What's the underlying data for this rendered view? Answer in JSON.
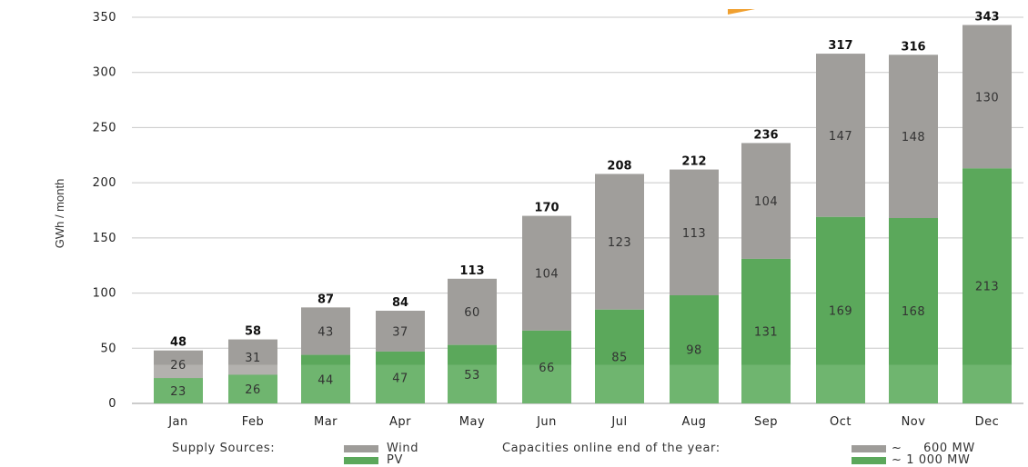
{
  "chart_data": {
    "type": "bar",
    "stacked": true,
    "ylabel": "GWh / month",
    "ylim": [
      0,
      350
    ],
    "yticks": [
      0,
      50,
      100,
      150,
      200,
      250,
      300,
      350
    ],
    "grid": true,
    "categories": [
      "Jan",
      "Feb",
      "Mar",
      "Apr",
      "May",
      "Jun",
      "Jul",
      "Aug",
      "Sep",
      "Oct",
      "Nov",
      "Dec"
    ],
    "series": [
      {
        "name": "PV",
        "color": "#5ba85b",
        "values": [
          23,
          26,
          44,
          47,
          53,
          66,
          85,
          98,
          131,
          169,
          168,
          213
        ]
      },
      {
        "name": "Wind",
        "color": "#a09e9b",
        "values": [
          26,
          31,
          43,
          37,
          60,
          104,
          123,
          113,
          104,
          147,
          148,
          130
        ]
      }
    ],
    "totals": [
      48,
      58,
      87,
      84,
      113,
      170,
      208,
      212,
      236,
      317,
      316,
      343
    ],
    "baseline_band": {
      "value": 35,
      "color_pv": "#6fb56f",
      "color_wind": "#b3b1ae"
    }
  },
  "legend": {
    "supply_title": "Supply Sources:",
    "wind_label": "Wind",
    "pv_label": "PV",
    "capacity_title": "Capacities online end of the year:",
    "wind_capacity": "~     600 MW",
    "pv_capacity": "~ 1 000 MW",
    "wind_color": "#9e9c99",
    "pv_color": "#5ba85b"
  }
}
